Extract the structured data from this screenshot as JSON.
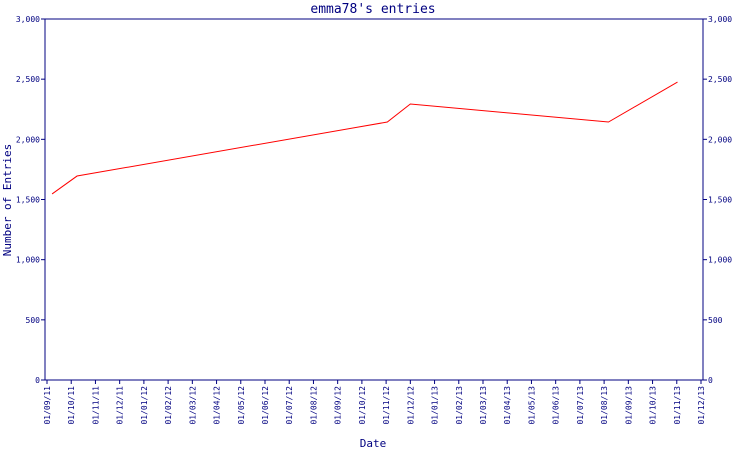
{
  "chart_data": {
    "type": "line",
    "title": "emma78's entries",
    "x_label": "Date",
    "y_label": "Number of Entries",
    "xlim": [
      0,
      27
    ],
    "xticks": [
      {
        "value": 0,
        "label": "01/09/11"
      },
      {
        "value": 1,
        "label": "01/10/11"
      },
      {
        "value": 2,
        "label": "01/11/11"
      },
      {
        "value": 3,
        "label": "01/12/11"
      },
      {
        "value": 4,
        "label": "01/01/12"
      },
      {
        "value": 5,
        "label": "01/02/12"
      },
      {
        "value": 6,
        "label": "01/03/12"
      },
      {
        "value": 7,
        "label": "01/04/12"
      },
      {
        "value": 8,
        "label": "01/05/12"
      },
      {
        "value": 9,
        "label": "01/06/12"
      },
      {
        "value": 10,
        "label": "01/07/12"
      },
      {
        "value": 11,
        "label": "01/08/12"
      },
      {
        "value": 12,
        "label": "01/09/12"
      },
      {
        "value": 13,
        "label": "01/10/12"
      },
      {
        "value": 14,
        "label": "01/11/12"
      },
      {
        "value": 15,
        "label": "01/12/12"
      },
      {
        "value": 16,
        "label": "01/01/13"
      },
      {
        "value": 17,
        "label": "01/02/13"
      },
      {
        "value": 18,
        "label": "01/03/13"
      },
      {
        "value": 19,
        "label": "01/04/13"
      },
      {
        "value": 20,
        "label": "01/05/13"
      },
      {
        "value": 21,
        "label": "01/06/13"
      },
      {
        "value": 22,
        "label": "01/07/13"
      },
      {
        "value": 23,
        "label": "01/08/13"
      },
      {
        "value": 24,
        "label": "01/09/13"
      },
      {
        "value": 25,
        "label": "01/10/13"
      },
      {
        "value": 26,
        "label": "01/11/13"
      },
      {
        "value": 27,
        "label": "01/12/13"
      }
    ],
    "ylim": [
      0,
      3000
    ],
    "yticks": [
      0,
      500,
      {
        "value": 1000,
        "label": "1,000"
      },
      {
        "value": 1500,
        "label": "1,500"
      },
      {
        "value": 2000,
        "label": "2,000"
      },
      {
        "value": 2500,
        "label": "2,500"
      },
      {
        "value": 3000,
        "label": "3,000"
      }
    ],
    "y2lim": [
      0,
      3000
    ],
    "y2ticks": [
      0,
      500,
      {
        "value": 1000,
        "label": "1,000"
      },
      {
        "value": 1500,
        "label": "1,500"
      },
      {
        "value": 2000,
        "label": "2,000"
      },
      {
        "value": 2500,
        "label": "2,500"
      },
      {
        "value": 3000,
        "label": "3,000"
      }
    ],
    "series": [
      {
        "color": "#ff0000",
        "x": [
          0.21,
          1.24,
          14.05,
          15.0,
          23.18,
          26.03
        ],
        "values": [
          1546,
          1695,
          2144,
          2294,
          2144,
          2476
        ]
      }
    ]
  }
}
